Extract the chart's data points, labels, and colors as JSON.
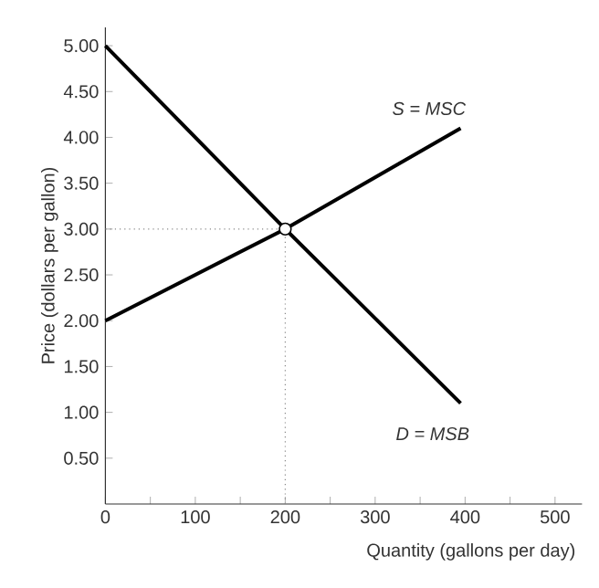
{
  "chart_data": {
    "type": "line",
    "xlabel": "Quantity (gallons per day)",
    "ylabel": "Price (dollars per gallon)",
    "xlim": [
      0,
      530
    ],
    "ylim": [
      0,
      5.2
    ],
    "xticks": [
      0,
      {
        "value": 50,
        "label": null
      },
      100,
      {
        "value": 150,
        "label": null
      },
      200,
      {
        "value": 250,
        "label": null
      },
      300,
      {
        "value": 350,
        "label": null
      },
      400,
      {
        "value": 450,
        "label": null
      },
      500
    ],
    "yticks": [
      {
        "value": 0.5,
        "label": "0.50"
      },
      {
        "value": 1,
        "label": "1.00"
      },
      {
        "value": 1.5,
        "label": "1.50"
      },
      {
        "value": 2,
        "label": "2.00"
      },
      {
        "value": 2.5,
        "label": "2.50"
      },
      {
        "value": 3,
        "label": "3.00"
      },
      {
        "value": 3.5,
        "label": "3.50"
      },
      {
        "value": 4,
        "label": "4.00"
      },
      {
        "value": 4.5,
        "label": "4.50"
      },
      {
        "value": 5,
        "label": "5.00"
      }
    ],
    "series": [
      {
        "name": "*S* = *MSC*",
        "color": "#000000",
        "x": [
          0,
          200,
          395
        ],
        "values": [
          2,
          3,
          4.1
        ]
      },
      {
        "name": "*D* = *MSB*",
        "color": "#000000",
        "x": [
          0,
          200,
          395
        ],
        "values": [
          5,
          3,
          1.1
        ]
      },
      {
        "type": "scatter",
        "marker": "circle",
        "color": "#000000",
        "x": [
          200
        ],
        "values": [
          3
        ]
      }
    ],
    "ref_lines": [
      {
        "axis": "y",
        "value": 3,
        "color": "#888888",
        "line_style": "dotted"
      },
      {
        "axis": "x",
        "value": 200,
        "color": "#888888",
        "line_style": "dotted"
      }
    ],
    "marker": "none",
    "grid": false
  }
}
